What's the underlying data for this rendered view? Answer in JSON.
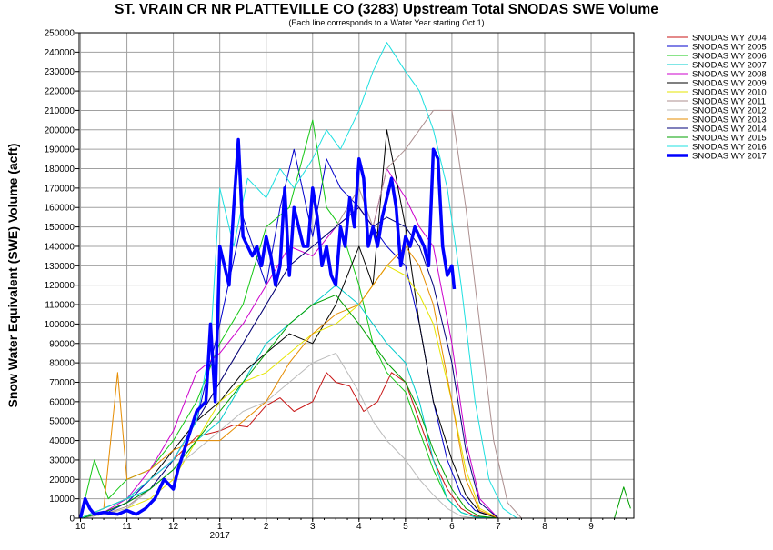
{
  "chart_data": {
    "type": "line",
    "title": "ST. VRAIN CR NR PLATTEVILLE CO (3283) Upstream Total SNODAS SWE Volume",
    "subtitle": "(Each line corresponds to a Water Year starting Oct 1)",
    "ylabel": "Snow Water Equivalent (SWE) Volume (acft)",
    "xlabel": "",
    "ylim": [
      0,
      250000
    ],
    "yticks": [
      0,
      10000,
      20000,
      30000,
      40000,
      50000,
      60000,
      70000,
      80000,
      90000,
      100000,
      110000,
      120000,
      130000,
      140000,
      150000,
      160000,
      170000,
      180000,
      190000,
      200000,
      210000,
      220000,
      230000,
      240000,
      250000
    ],
    "xlim": [
      9.97,
      21.92
    ],
    "xticks": [
      {
        "x": 10,
        "label": "10"
      },
      {
        "x": 11,
        "label": "11"
      },
      {
        "x": 12,
        "label": "12"
      },
      {
        "x": 13,
        "label": "1"
      },
      {
        "x": 14,
        "label": "2"
      },
      {
        "x": 15,
        "label": "3"
      },
      {
        "x": 16,
        "label": "4"
      },
      {
        "x": 17,
        "label": "5"
      },
      {
        "x": 18,
        "label": "6"
      },
      {
        "x": 19,
        "label": "7"
      },
      {
        "x": 20,
        "label": "8"
      },
      {
        "x": 21,
        "label": "9"
      }
    ],
    "year_label": {
      "x": 13,
      "text": "2017"
    },
    "grid": true,
    "legend_position": "right",
    "series": [
      {
        "name": "SNODAS WY 2004",
        "color": "#c81414",
        "width": 1,
        "x": [
          10,
          10.5,
          11,
          11.5,
          12,
          12.5,
          13,
          13.3,
          13.6,
          14,
          14.3,
          14.6,
          15,
          15.3,
          15.5,
          15.8,
          16.1,
          16.4,
          16.7,
          17,
          17.3,
          17.6,
          17.9,
          18.2,
          18.5,
          19
        ],
        "y": [
          0,
          3000,
          8000,
          20000,
          30000,
          42000,
          45000,
          48000,
          47000,
          58000,
          62000,
          55000,
          60000,
          75000,
          70000,
          68000,
          55000,
          60000,
          75000,
          70000,
          50000,
          30000,
          15000,
          5000,
          1000,
          0
        ]
      },
      {
        "name": "SNODAS WY 2005",
        "color": "#0000cc",
        "width": 1,
        "x": [
          10,
          10.5,
          11,
          11.5,
          12,
          12.5,
          13,
          13.5,
          14,
          14.3,
          14.6,
          15,
          15.3,
          15.6,
          16,
          16.3,
          16.6,
          17,
          17.3,
          17.6,
          17.9,
          18.2,
          18.5,
          19
        ],
        "y": [
          0,
          2000,
          8000,
          20000,
          30000,
          50000,
          100000,
          155000,
          120000,
          160000,
          190000,
          145000,
          185000,
          170000,
          160000,
          150000,
          140000,
          130000,
          100000,
          60000,
          30000,
          12000,
          4000,
          0
        ]
      },
      {
        "name": "SNODAS WY 2006",
        "color": "#14c814",
        "width": 1,
        "x": [
          10,
          10.3,
          10.6,
          11,
          11.5,
          12,
          12.5,
          13,
          13.5,
          14,
          14.5,
          15,
          15.3,
          15.6,
          16,
          16.3,
          16.6,
          17,
          17.3,
          17.6,
          17.9,
          18.2,
          18.5,
          19
        ],
        "y": [
          0,
          30000,
          10000,
          20000,
          25000,
          40000,
          60000,
          90000,
          110000,
          150000,
          160000,
          205000,
          160000,
          150000,
          120000,
          90000,
          75000,
          65000,
          45000,
          25000,
          10000,
          3000,
          500,
          0
        ]
      },
      {
        "name": "SNODAS WY 2007",
        "color": "#00cccc",
        "width": 1,
        "x": [
          10,
          10.5,
          11,
          11.5,
          12,
          12.5,
          13,
          13.5,
          14,
          14.5,
          15,
          15.5,
          16,
          16.3,
          16.6,
          17,
          17.3,
          17.6,
          17.9,
          18.2,
          18.5,
          19
        ],
        "y": [
          0,
          5000,
          10000,
          15000,
          25000,
          40000,
          50000,
          70000,
          90000,
          100000,
          110000,
          120000,
          110000,
          100000,
          90000,
          80000,
          60000,
          30000,
          10000,
          3000,
          500,
          0
        ]
      },
      {
        "name": "SNODAS WY 2008",
        "color": "#cc00cc",
        "width": 1,
        "x": [
          10,
          10.5,
          11,
          11.5,
          12,
          12.5,
          13,
          13.5,
          14,
          14.5,
          15,
          15.5,
          16,
          16.3,
          16.6,
          17,
          17.3,
          17.6,
          18,
          18.3,
          18.6,
          19
        ],
        "y": [
          0,
          3000,
          10000,
          25000,
          45000,
          75000,
          85000,
          100000,
          120000,
          140000,
          135000,
          150000,
          160000,
          150000,
          180000,
          165000,
          150000,
          140000,
          90000,
          40000,
          10000,
          0
        ]
      },
      {
        "name": "SNODAS WY 2009",
        "color": "#000000",
        "width": 1,
        "x": [
          10,
          10.5,
          11,
          11.5,
          12,
          12.5,
          13,
          13.5,
          14,
          14.5,
          15,
          15.5,
          16,
          16.3,
          16.6,
          17,
          17.3,
          17.6,
          18,
          18.3,
          18.6,
          19
        ],
        "y": [
          0,
          5000,
          10000,
          20000,
          35000,
          50000,
          60000,
          75000,
          85000,
          95000,
          90000,
          110000,
          140000,
          120000,
          200000,
          150000,
          100000,
          60000,
          30000,
          12000,
          3000,
          0
        ]
      },
      {
        "name": "SNODAS WY 2010",
        "color": "#e6e600",
        "width": 1,
        "x": [
          10,
          10.5,
          11,
          11.5,
          12,
          12.5,
          13,
          13.5,
          14,
          14.5,
          15,
          15.5,
          16,
          16.3,
          16.6,
          17,
          17.3,
          17.6,
          18,
          18.3,
          18.6,
          19
        ],
        "y": [
          0,
          2000,
          5000,
          10000,
          20000,
          40000,
          60000,
          70000,
          75000,
          85000,
          95000,
          100000,
          110000,
          120000,
          130000,
          125000,
          115000,
          100000,
          60000,
          25000,
          5000,
          0
        ]
      },
      {
        "name": "SNODAS WY 2011",
        "color": "#ac8f8f",
        "width": 1,
        "x": [
          10,
          10.5,
          11,
          11.5,
          12,
          12.5,
          13,
          13.5,
          14,
          14.5,
          15,
          15.5,
          16,
          16.3,
          16.6,
          17,
          17.3,
          17.6,
          18,
          18.3,
          18.6,
          18.9,
          19.2,
          19.5
        ],
        "y": [
          0,
          2000,
          6000,
          15000,
          30000,
          50000,
          70000,
          90000,
          110000,
          130000,
          140000,
          150000,
          170000,
          150000,
          180000,
          190000,
          200000,
          210000,
          210000,
          160000,
          100000,
          40000,
          8000,
          0
        ]
      },
      {
        "name": "SNODAS WY 2012",
        "color": "#bbbbbb",
        "width": 1,
        "x": [
          10,
          10.5,
          11,
          11.5,
          12,
          12.5,
          13,
          13.5,
          14,
          14.5,
          15,
          15.5,
          16,
          16.3,
          16.6,
          17,
          17.3,
          17.6,
          17.9,
          18.2,
          18.5
        ],
        "y": [
          0,
          2000,
          5000,
          15000,
          25000,
          35000,
          45000,
          55000,
          60000,
          70000,
          80000,
          85000,
          65000,
          50000,
          40000,
          30000,
          20000,
          12000,
          5000,
          1000,
          0
        ]
      },
      {
        "name": "SNODAS WY 2013",
        "color": "#e68c00",
        "width": 1,
        "x": [
          10,
          10.5,
          10.8,
          11,
          11.5,
          12,
          12.5,
          13,
          13.5,
          14,
          14.5,
          15,
          15.5,
          16,
          16.3,
          16.6,
          17,
          17.3,
          17.6,
          18,
          18.3,
          18.6,
          19
        ],
        "y": [
          0,
          5000,
          75000,
          20000,
          25000,
          35000,
          40000,
          40000,
          50000,
          60000,
          80000,
          95000,
          105000,
          110000,
          120000,
          130000,
          140000,
          130000,
          110000,
          60000,
          20000,
          4000,
          0
        ]
      },
      {
        "name": "SNODAS WY 2014",
        "color": "#00007a",
        "width": 1,
        "x": [
          10,
          10.5,
          11,
          11.5,
          12,
          12.5,
          13,
          13.5,
          14,
          14.5,
          15,
          15.5,
          16,
          16.3,
          16.6,
          17,
          17.3,
          17.6,
          18,
          18.3,
          18.6,
          19
        ],
        "y": [
          0,
          3000,
          8000,
          15000,
          30000,
          50000,
          70000,
          90000,
          110000,
          130000,
          140000,
          150000,
          160000,
          150000,
          155000,
          150000,
          140000,
          120000,
          80000,
          35000,
          8000,
          0
        ]
      },
      {
        "name": "SNODAS WY 2015",
        "color": "#00a000",
        "width": 1,
        "x": [
          10,
          10.5,
          11,
          11.5,
          12,
          12.5,
          13,
          13.5,
          14,
          14.5,
          15,
          15.5,
          16,
          16.3,
          16.6,
          17,
          17.3,
          17.6,
          18,
          18.3,
          18.6,
          19,
          21.5,
          21.7,
          21.85
        ],
        "y": [
          0,
          3000,
          8000,
          15000,
          25000,
          40000,
          55000,
          70000,
          85000,
          100000,
          110000,
          115000,
          100000,
          90000,
          80000,
          70000,
          55000,
          35000,
          15000,
          5000,
          1000,
          0,
          0,
          16000,
          5000
        ]
      },
      {
        "name": "SNODAS WY 2016",
        "color": "#1ee0e0",
        "width": 1,
        "x": [
          10,
          10.5,
          11,
          11.5,
          12,
          12.5,
          12.8,
          13,
          13.3,
          13.6,
          14,
          14.3,
          14.6,
          15,
          15.3,
          15.6,
          16,
          16.3,
          16.6,
          17,
          17.3,
          17.6,
          17.9,
          18.2,
          18.5,
          18.8,
          19.1,
          19.4
        ],
        "y": [
          0,
          5000,
          10000,
          20000,
          30000,
          50000,
          90000,
          170000,
          140000,
          175000,
          165000,
          180000,
          170000,
          185000,
          200000,
          190000,
          210000,
          230000,
          245000,
          230000,
          220000,
          200000,
          170000,
          120000,
          60000,
          20000,
          5000,
          0
        ]
      },
      {
        "name": "SNODAS WY 2017",
        "color": "#0000ff",
        "width": 3.5,
        "x": [
          10,
          10.1,
          10.2,
          10.3,
          10.5,
          10.8,
          11,
          11.2,
          11.4,
          11.6,
          11.8,
          12,
          12.1,
          12.3,
          12.5,
          12.7,
          12.8,
          12.9,
          13.0,
          13.1,
          13.2,
          13.3,
          13.4,
          13.5,
          13.6,
          13.7,
          13.8,
          13.9,
          14.0,
          14.1,
          14.2,
          14.3,
          14.4,
          14.5,
          14.6,
          14.7,
          14.8,
          14.9,
          15.0,
          15.1,
          15.2,
          15.3,
          15.4,
          15.5,
          15.6,
          15.7,
          15.8,
          15.9,
          16.0,
          16.1,
          16.2,
          16.3,
          16.4,
          16.5,
          16.6,
          16.7,
          16.8,
          16.9,
          17.0,
          17.1,
          17.2,
          17.3,
          17.4,
          17.5,
          17.6,
          17.7,
          17.8,
          17.9,
          18.0,
          18.05
        ],
        "y": [
          0,
          10000,
          5000,
          2000,
          3000,
          2000,
          4000,
          2000,
          5000,
          10000,
          20000,
          15000,
          25000,
          40000,
          55000,
          60000,
          100000,
          60000,
          140000,
          130000,
          120000,
          160000,
          195000,
          145000,
          140000,
          135000,
          140000,
          130000,
          145000,
          135000,
          120000,
          130000,
          170000,
          125000,
          160000,
          150000,
          140000,
          140000,
          170000,
          155000,
          130000,
          140000,
          125000,
          120000,
          150000,
          140000,
          165000,
          150000,
          185000,
          175000,
          140000,
          150000,
          140000,
          155000,
          165000,
          175000,
          160000,
          130000,
          145000,
          140000,
          150000,
          145000,
          140000,
          130000,
          190000,
          185000,
          140000,
          125000,
          130000,
          118000
        ]
      }
    ]
  }
}
